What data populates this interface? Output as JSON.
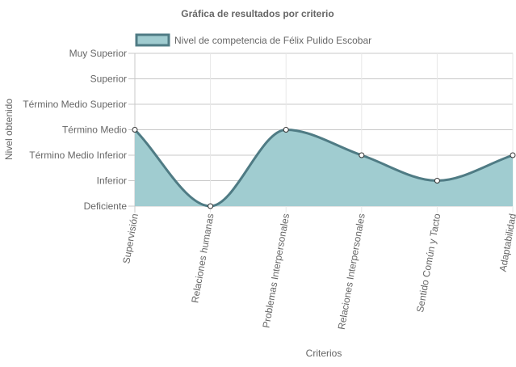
{
  "chart_data": {
    "type": "area",
    "title": "Gráfica de resultados por criterio",
    "xlabel": "Criterios",
    "ylabel": "Nivel obtenido",
    "categories": [
      "Supervisión",
      "Relaciones humanas",
      "Problemas Interpersonales",
      "Relaciones Interpersonales",
      "Sentido Común y Tacto",
      "Adaptabilidad"
    ],
    "y_levels": [
      "Deficiente",
      "Inferior",
      "Término Medio Inferior",
      "Término Medio",
      "Término Medio Superior",
      "Superior",
      "Muy Superior"
    ],
    "ylim": [
      0,
      6
    ],
    "series": [
      {
        "name": "Nivel de competencia de Félix Pulido Escobar",
        "values": [
          3,
          0,
          3,
          2,
          1,
          2
        ],
        "value_labels": [
          "Término Medio",
          "Deficiente",
          "Término Medio",
          "Término Medio Inferior",
          "Inferior",
          "Término Medio Inferior"
        ],
        "line_color": "#4f7b84",
        "fill_color": "#a0ccd0",
        "point_fill": "#ffffff"
      }
    ],
    "grid": true,
    "smooth": true,
    "legend_position": "top"
  }
}
